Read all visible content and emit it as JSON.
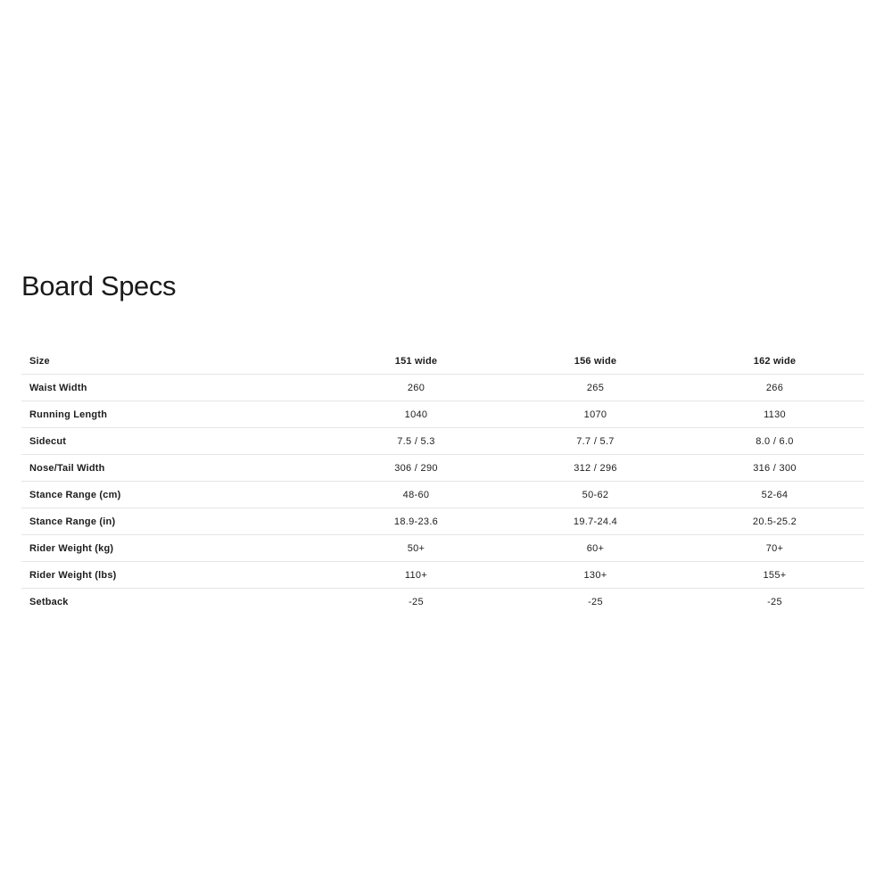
{
  "page": {
    "title": "Board Specs"
  },
  "table": {
    "header": {
      "label": "Size",
      "columns": [
        "151 wide",
        "156 wide",
        "162 wide"
      ]
    },
    "rows": [
      {
        "label": "Waist Width",
        "values": [
          "260",
          "265",
          "266"
        ]
      },
      {
        "label": "Running Length",
        "values": [
          "1040",
          "1070",
          "1130"
        ]
      },
      {
        "label": "Sidecut",
        "values": [
          "7.5 / 5.3",
          "7.7 / 5.7",
          "8.0 / 6.0"
        ]
      },
      {
        "label": "Nose/Tail Width",
        "values": [
          "306 / 290",
          "312 / 296",
          "316 / 300"
        ]
      },
      {
        "label": "Stance Range (cm)",
        "values": [
          "48-60",
          "50-62",
          "52-64"
        ]
      },
      {
        "label": "Stance Range (in)",
        "values": [
          "18.9-23.6",
          "19.7-24.4",
          "20.5-25.2"
        ]
      },
      {
        "label": "Rider Weight (kg)",
        "values": [
          "50+",
          "60+",
          "70+"
        ]
      },
      {
        "label": "Rider Weight (lbs)",
        "values": [
          "110+",
          "130+",
          "155+"
        ]
      },
      {
        "label": "Setback",
        "values": [
          "-25",
          "-25",
          "-25"
        ]
      }
    ]
  }
}
